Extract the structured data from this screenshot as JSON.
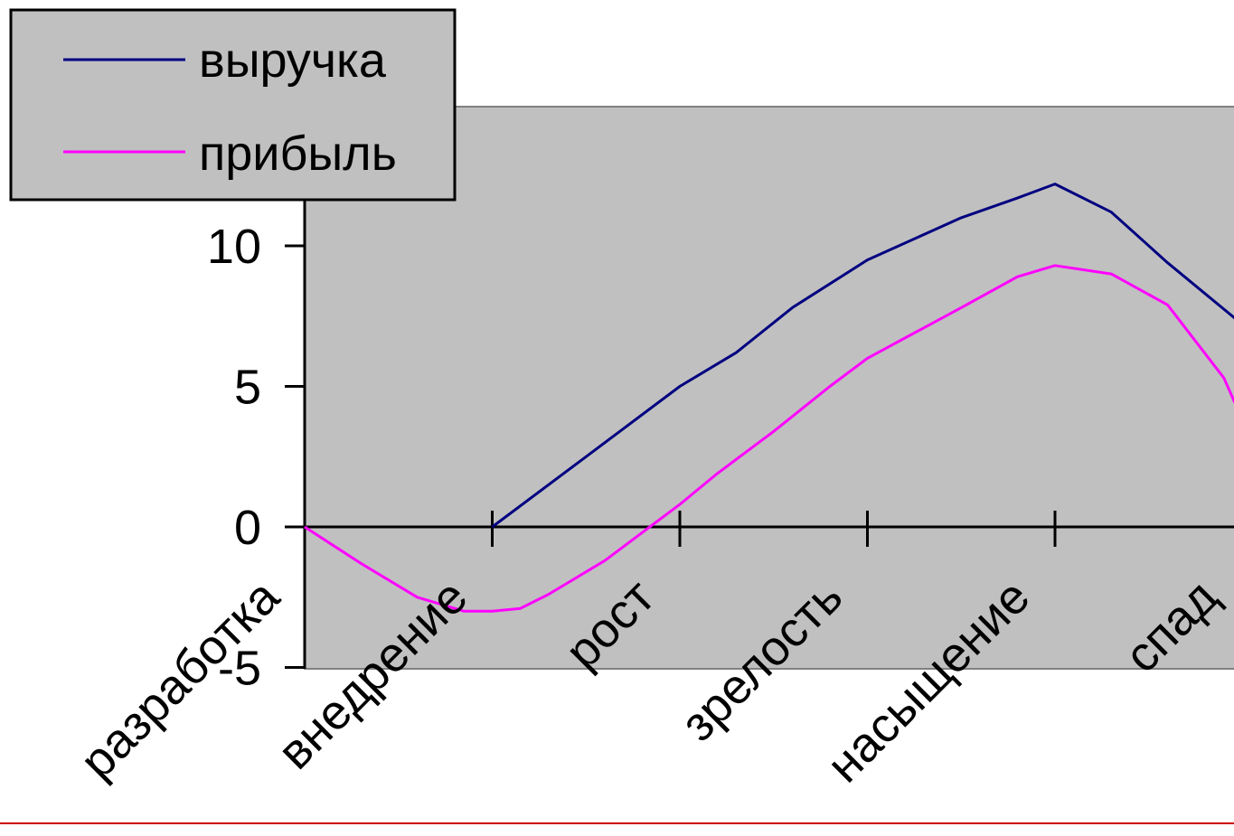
{
  "chart_data": {
    "type": "line",
    "categories": [
      "разработка",
      "внедрение",
      "рост",
      "зрелость",
      "насыщение",
      "спад"
    ],
    "x": [
      0,
      0.5,
      1,
      1.5,
      2,
      2.5,
      3,
      3.5,
      4,
      4.5,
      5
    ],
    "series": [
      {
        "name": "выручка",
        "color": "#000080",
        "points": [
          [
            1,
            0
          ],
          [
            1.5,
            2.5
          ],
          [
            2,
            5
          ],
          [
            2.3,
            6.2
          ],
          [
            2.6,
            7.8
          ],
          [
            3,
            9.5
          ],
          [
            3.5,
            11
          ],
          [
            3.8,
            11.7
          ],
          [
            4,
            12.2
          ],
          [
            4.3,
            11.2
          ],
          [
            4.6,
            9.4
          ],
          [
            5,
            7.2
          ]
        ]
      },
      {
        "name": "прибыль",
        "color": "#ff00ff",
        "points": [
          [
            0,
            0
          ],
          [
            0.3,
            -1.3
          ],
          [
            0.6,
            -2.5
          ],
          [
            0.85,
            -3.0
          ],
          [
            1,
            -3.0
          ],
          [
            1.15,
            -2.9
          ],
          [
            1.3,
            -2.4
          ],
          [
            1.6,
            -1.2
          ],
          [
            2,
            0.8
          ],
          [
            2.2,
            1.9
          ],
          [
            2.5,
            3.4
          ],
          [
            2.8,
            5.0
          ],
          [
            3,
            6.0
          ],
          [
            3.5,
            7.8
          ],
          [
            3.8,
            8.9
          ],
          [
            4,
            9.3
          ],
          [
            4.3,
            9.0
          ],
          [
            4.6,
            7.9
          ],
          [
            4.9,
            5.3
          ],
          [
            5,
            3.8
          ]
        ]
      }
    ],
    "y_ticks": [
      "-5",
      "0",
      "5",
      "10"
    ],
    "y_tick_values": [
      -5,
      0,
      5,
      10
    ],
    "ylim": [
      -5,
      15
    ],
    "legend_position": "top-left",
    "plot_background": "#c0c0c0"
  }
}
